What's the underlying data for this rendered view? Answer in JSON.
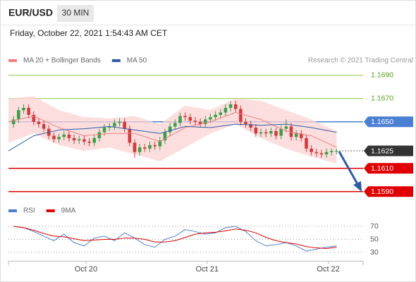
{
  "header": {
    "symbol": "EUR/USD",
    "timeframe": "30 MIN",
    "date": "Friday, October 22, 2021 1:54:43 AM CET"
  },
  "chart_data": [
    {
      "type": "candlestick",
      "source": "Research © 2021 Trading Central",
      "up_color": "#3aa04a",
      "down_color": "#d9383a",
      "xlim": [
        0,
        140.5
      ],
      "ylim": [
        1.1578,
        1.1705
      ],
      "x": [
        2,
        4,
        6,
        8,
        10,
        12,
        14,
        16,
        18,
        20,
        22,
        24,
        26,
        28,
        30,
        32,
        34,
        36,
        38,
        40,
        42,
        44,
        46,
        48,
        50,
        52,
        54,
        56,
        58,
        60,
        62,
        64,
        66,
        68,
        70,
        72,
        74,
        76,
        78,
        80,
        82,
        84,
        86,
        88,
        90,
        92,
        94,
        96,
        98,
        100,
        102,
        104,
        106,
        108,
        110,
        112,
        114,
        116,
        118,
        120,
        122,
        124,
        126,
        128,
        130
      ],
      "candles": [
        [
          1.1648,
          1.1655,
          1.1645,
          1.1652
        ],
        [
          1.1652,
          1.1663,
          1.1649,
          1.166
        ],
        [
          1.166,
          1.1665,
          1.1657,
          1.1662
        ],
        [
          1.1662,
          1.1665,
          1.1653,
          1.1656
        ],
        [
          1.1656,
          1.1659,
          1.1647,
          1.165
        ],
        [
          1.165,
          1.1653,
          1.1645,
          1.1648
        ],
        [
          1.1648,
          1.1651,
          1.1641,
          1.1644
        ],
        [
          1.1644,
          1.1647,
          1.1635,
          1.1638
        ],
        [
          1.1638,
          1.1641,
          1.1632,
          1.1635
        ],
        [
          1.1635,
          1.164,
          1.1632,
          1.1637
        ],
        [
          1.1637,
          1.1642,
          1.1634,
          1.1639
        ],
        [
          1.1639,
          1.1642,
          1.1633,
          1.1636
        ],
        [
          1.1636,
          1.1639,
          1.1631,
          1.1634
        ],
        [
          1.1634,
          1.1638,
          1.1631,
          1.1635
        ],
        [
          1.1635,
          1.1638,
          1.163,
          1.1633
        ],
        [
          1.1633,
          1.1636,
          1.1629,
          1.1632
        ],
        [
          1.1632,
          1.1639,
          1.1629,
          1.1636
        ],
        [
          1.1636,
          1.1644,
          1.1633,
          1.1641
        ],
        [
          1.1641,
          1.1648,
          1.1638,
          1.1645
        ],
        [
          1.1645,
          1.1649,
          1.1642,
          1.1646
        ],
        [
          1.1646,
          1.1652,
          1.1643,
          1.1649
        ],
        [
          1.1649,
          1.1653,
          1.1646,
          1.165
        ],
        [
          1.165,
          1.1653,
          1.1641,
          1.1644
        ],
        [
          1.1644,
          1.1647,
          1.1629,
          1.1632
        ],
        [
          1.1632,
          1.1635,
          1.1619,
          1.1624
        ],
        [
          1.1624,
          1.1631,
          1.1621,
          1.1628
        ],
        [
          1.1628,
          1.1631,
          1.1624,
          1.1627
        ],
        [
          1.1627,
          1.1633,
          1.1624,
          1.163
        ],
        [
          1.163,
          1.1633,
          1.1626,
          1.1629
        ],
        [
          1.1629,
          1.1637,
          1.1626,
          1.1634
        ],
        [
          1.1634,
          1.1644,
          1.1631,
          1.1641
        ],
        [
          1.1641,
          1.1649,
          1.1638,
          1.1646
        ],
        [
          1.1646,
          1.1652,
          1.1643,
          1.1649
        ],
        [
          1.1649,
          1.1658,
          1.1646,
          1.1655
        ],
        [
          1.1655,
          1.1658,
          1.1651,
          1.1654
        ],
        [
          1.1654,
          1.1657,
          1.1648,
          1.1651
        ],
        [
          1.1651,
          1.1654,
          1.1647,
          1.165
        ],
        [
          1.165,
          1.1653,
          1.1645,
          1.1648
        ],
        [
          1.1648,
          1.1655,
          1.1645,
          1.1652
        ],
        [
          1.1652,
          1.1657,
          1.1649,
          1.1654
        ],
        [
          1.1654,
          1.1659,
          1.1651,
          1.1656
        ],
        [
          1.1656,
          1.1661,
          1.1653,
          1.1658
        ],
        [
          1.1658,
          1.1665,
          1.1655,
          1.1662
        ],
        [
          1.1662,
          1.1668,
          1.1659,
          1.1665
        ],
        [
          1.1665,
          1.1668,
          1.1658,
          1.1661
        ],
        [
          1.1661,
          1.1664,
          1.1647,
          1.165
        ],
        [
          1.165,
          1.1653,
          1.1645,
          1.1648
        ],
        [
          1.1648,
          1.1651,
          1.1642,
          1.1645
        ],
        [
          1.1645,
          1.1648,
          1.1637,
          1.164
        ],
        [
          1.164,
          1.1644,
          1.1637,
          1.1641
        ],
        [
          1.1641,
          1.1644,
          1.1637,
          1.164
        ],
        [
          1.164,
          1.1645,
          1.1637,
          1.1642
        ],
        [
          1.1642,
          1.1645,
          1.1635,
          1.1638
        ],
        [
          1.1638,
          1.1647,
          1.1635,
          1.1644
        ],
        [
          1.1644,
          1.1652,
          1.1641,
          1.1646
        ],
        [
          1.1646,
          1.1649,
          1.1634,
          1.1637
        ],
        [
          1.1637,
          1.1643,
          1.1634,
          1.164
        ],
        [
          1.164,
          1.1643,
          1.1633,
          1.1636
        ],
        [
          1.1636,
          1.1639,
          1.1624,
          1.1627
        ],
        [
          1.1627,
          1.163,
          1.1621,
          1.1624
        ],
        [
          1.1624,
          1.1627,
          1.162,
          1.1623
        ],
        [
          1.1623,
          1.1626,
          1.1619,
          1.1622
        ],
        [
          1.1622,
          1.1627,
          1.1619,
          1.1624
        ],
        [
          1.1624,
          1.1627,
          1.1621,
          1.1625
        ],
        [
          1.1625,
          1.1627,
          1.1622,
          1.1625
        ]
      ],
      "overlays": {
        "x": [
          0,
          10,
          20,
          30,
          40,
          50,
          60,
          70,
          80,
          90,
          100,
          110,
          120,
          130
        ],
        "series": [
          {
            "name": "MA 20 + Bollinger Bands",
            "color": "#f08080",
            "band_color": "#fbd3d3",
            "values": [
              1.165,
              1.1655,
              1.1645,
              1.1638,
              1.164,
              1.164,
              1.1633,
              1.1645,
              1.165,
              1.1658,
              1.1652,
              1.1642,
              1.1638,
              1.1628
            ],
            "upper": [
              1.167,
              1.1672,
              1.166,
              1.1654,
              1.1653,
              1.1655,
              1.1648,
              1.1664,
              1.166,
              1.167,
              1.1668,
              1.166,
              1.1652,
              1.1642
            ],
            "lower": [
              1.1632,
              1.164,
              1.163,
              1.1625,
              1.1628,
              1.1622,
              1.1616,
              1.1628,
              1.164,
              1.1648,
              1.1636,
              1.1627,
              1.162,
              1.1614
            ]
          },
          {
            "name": "MA 50",
            "color": "#2b5ca8",
            "values": [
              1.1625,
              1.1638,
              1.1643,
              1.1644,
              1.1646,
              1.1643,
              1.164,
              1.1646,
              1.1645,
              1.1648,
              1.1647,
              1.1648,
              1.1645,
              1.1641
            ]
          }
        ]
      },
      "levels": [
        {
          "value": 1.169,
          "label": "1.1690",
          "color": "#8dc63f",
          "tag": false,
          "style": "solid"
        },
        {
          "value": 1.167,
          "label": "1.1670",
          "color": "#8dc63f",
          "tag": false,
          "style": "solid"
        },
        {
          "value": 1.165,
          "label": "1.1650",
          "color": "#4a7fd4",
          "tag": true,
          "style": "solid"
        },
        {
          "value": 1.1625,
          "label": "1.1625",
          "color": "#333333",
          "tag": true,
          "style": "dotted"
        },
        {
          "value": 1.161,
          "label": "1.1610",
          "color": "#e00000",
          "tag": true,
          "style": "solid"
        },
        {
          "value": 1.159,
          "label": "1.1590",
          "color": "#e00000",
          "tag": true,
          "style": "solid"
        }
      ]
    },
    {
      "type": "line",
      "xlim": [
        0,
        140.5
      ],
      "ylim": [
        15,
        80
      ],
      "yticks": [
        30,
        50,
        70
      ],
      "xticks": [
        {
          "value": 30.7,
          "label": "Oct 20"
        },
        {
          "value": 78.7,
          "label": "Oct 21"
        },
        {
          "value": 126.7,
          "label": "Oct 22"
        }
      ],
      "x": [
        2,
        6,
        10,
        14,
        18,
        22,
        26,
        30,
        34,
        38,
        42,
        46,
        50,
        54,
        58,
        62,
        66,
        70,
        74,
        78,
        82,
        86,
        90,
        94,
        98,
        102,
        106,
        110,
        114,
        118,
        122,
        126,
        130
      ],
      "series": [
        {
          "name": "RSI",
          "color": "#4a7fd4",
          "values": [
            70,
            68,
            62,
            55,
            48,
            58,
            45,
            40,
            52,
            55,
            48,
            60,
            52,
            42,
            38,
            50,
            55,
            65,
            62,
            58,
            60,
            68,
            70,
            62,
            48,
            40,
            42,
            45,
            40,
            32,
            35,
            38,
            40
          ]
        },
        {
          "name": "9MA",
          "color": "#e00000",
          "values": [
            70,
            68,
            64,
            59,
            55,
            54,
            51,
            48,
            49,
            50,
            50,
            52,
            52,
            50,
            46,
            46,
            48,
            53,
            58,
            60,
            61,
            63,
            66,
            64,
            60,
            53,
            48,
            45,
            43,
            39,
            37,
            36,
            38
          ]
        }
      ]
    }
  ]
}
